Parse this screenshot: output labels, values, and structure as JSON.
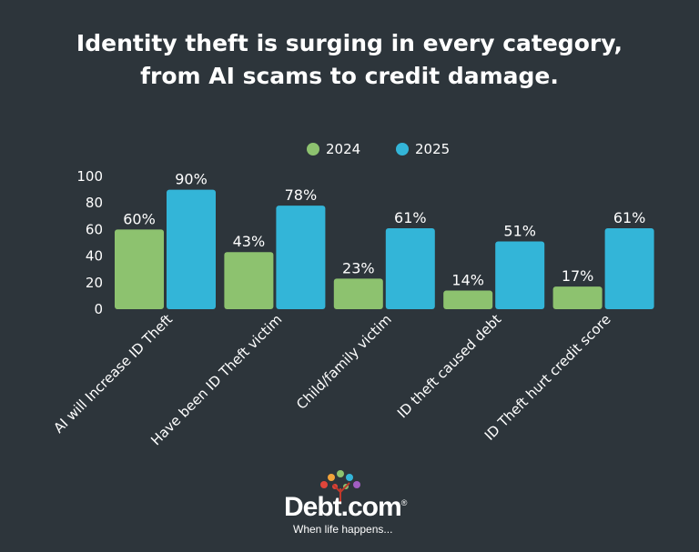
{
  "title_line1": "Identity theft is surging in every category,",
  "title_line2": "from AI scams to credit damage.",
  "chart_data": {
    "type": "bar",
    "categories": [
      "AI will Increase ID Theft",
      "Have been ID Theft victim",
      "Child/family victim",
      "ID theft caused debt",
      "ID Theft hurt credit score"
    ],
    "series": [
      {
        "name": "2024",
        "values": [
          60,
          43,
          23,
          14,
          17
        ],
        "color": "#8dc26f"
      },
      {
        "name": "2025",
        "values": [
          90,
          78,
          61,
          51,
          61
        ],
        "color": "#33b5d8"
      }
    ],
    "ylim": [
      0,
      100
    ],
    "yticks": [
      0,
      20,
      40,
      60,
      80,
      100
    ],
    "value_suffix": "%",
    "legend": "top-center",
    "grid": false
  },
  "brand": {
    "name": "Debt.com",
    "registered": "®",
    "tagline": "When life happens..."
  }
}
